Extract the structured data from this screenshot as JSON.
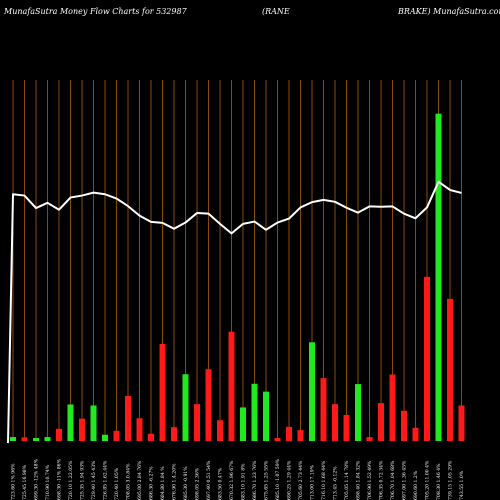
{
  "chart_data": {
    "type": "bar",
    "title": "MunafaSutra  Money Flow  Charts for 532987",
    "title_parts": [
      "MunafaSutra  Money Flow  Charts for 532987",
      "(RANE",
      "BRAKE) MunafaSutra.com"
    ],
    "background": "#000000",
    "up_color": "#22e81f",
    "down_color": "#ff1a1a",
    "price_line_color": "#ffffff",
    "vertical_line_color": "#b05a10",
    "grid": true,
    "legend": "none",
    "volume_ylim": [
      0,
      100
    ],
    "price_ylim": [
      0,
      100
    ],
    "bars": [
      {
        "label": "723.60 1% 96%",
        "direction": "up",
        "volume": 1.2,
        "price": 75
      },
      {
        "label": "725.45 16.98%",
        "direction": "down",
        "volume": 1.1,
        "price": 74.6
      },
      {
        "label": "699.30 -12% 48%",
        "direction": "up",
        "volume": 0.9,
        "price": 70.8
      },
      {
        "label": "710.90 10.74%",
        "direction": "up",
        "volume": 1.2,
        "price": 72.4
      },
      {
        "label": "698.30 -11% 86%",
        "direction": "down",
        "volume": 3.7,
        "price": 70.3
      },
      {
        "label": "720.10 1.22.05%",
        "direction": "up",
        "volume": 11.1,
        "price": 74.0
      },
      {
        "label": "725.35 1.94 93%",
        "direction": "down",
        "volume": 6.8,
        "price": 74.6
      },
      {
        "label": "729.40 1.45 43%",
        "direction": "up",
        "volume": 10.8,
        "price": 75.5
      },
      {
        "label": "726.85 1.62.44%",
        "direction": "up",
        "volume": 1.9,
        "price": 75.0
      },
      {
        "label": "720.40 1.05%",
        "direction": "down",
        "volume": 3.1,
        "price": 73.7
      },
      {
        "label": "708.05 3.0.84%",
        "direction": "down",
        "volume": 13.7,
        "price": 71.4
      },
      {
        "label": "695.00 2.84 76%",
        "direction": "down",
        "volume": 6.9,
        "price": 68.5
      },
      {
        "label": "686.30 -6.27%",
        "direction": "down",
        "volume": 2.2,
        "price": 66.6
      },
      {
        "label": "684.80 1.84 %",
        "direction": "down",
        "volume": 29.5,
        "price": 66.3
      },
      {
        "label": "676.90 1.4.20%",
        "direction": "down",
        "volume": 4.2,
        "price": 64.5
      },
      {
        "label": "685.30 -0.91%",
        "direction": "up",
        "volume": 20.3,
        "price": 66.4
      },
      {
        "label": "698.05 2.36%",
        "direction": "down",
        "volume": 11.2,
        "price": 69.3
      },
      {
        "label": "697.40 0.51 54%",
        "direction": "down",
        "volume": 21.8,
        "price": 69.1
      },
      {
        "label": "683.50 0.47%",
        "direction": "down",
        "volume": 6.3,
        "price": 66.0
      },
      {
        "label": "670.32 1.96 67%",
        "direction": "down",
        "volume": 33.2,
        "price": 63.1
      },
      {
        "label": "683.10 1.91 8%",
        "direction": "up",
        "volume": 10.2,
        "price": 66.0
      },
      {
        "label": "686.70 1.23 76%",
        "direction": "up",
        "volume": 17.4,
        "price": 66.7
      },
      {
        "label": "675.65 1.25 55%",
        "direction": "up",
        "volume": 15.0,
        "price": 64.2
      },
      {
        "label": "685.10 -1.07 59%",
        "direction": "down",
        "volume": 0.9,
        "price": 66.4
      },
      {
        "label": "690.25 1.29 44%",
        "direction": "down",
        "volume": 4.3,
        "price": 67.6
      },
      {
        "label": "705.60 2.73 44%",
        "direction": "down",
        "volume": 3.3,
        "price": 71.0
      },
      {
        "label": "713.00 17.19%",
        "direction": "up",
        "volume": 30.0,
        "price": 72.6
      },
      {
        "label": "716.10 1.68 44%",
        "direction": "down",
        "volume": 19.1,
        "price": 73.3
      },
      {
        "label": "713.45 -0.12%",
        "direction": "down",
        "volume": 11.2,
        "price": 72.7
      },
      {
        "label": "705.05 1.14 78%",
        "direction": "down",
        "volume": 7.9,
        "price": 70.9
      },
      {
        "label": "698.40 1.84 32%",
        "direction": "up",
        "volume": 17.3,
        "price": 69.4
      },
      {
        "label": "706.90 1.52 49%",
        "direction": "down",
        "volume": 1.2,
        "price": 71.3
      },
      {
        "label": "706.35 0.72 34%",
        "direction": "down",
        "volume": 11.5,
        "price": 71.2
      },
      {
        "label": "706.70 1.04 68%",
        "direction": "down",
        "volume": 20.2,
        "price": 71.3
      },
      {
        "label": "697.00 1.36 45%",
        "direction": "down",
        "volume": 9.2,
        "price": 69.1
      },
      {
        "label": "690.60 1.2%",
        "direction": "down",
        "volume": 4.0,
        "price": 67.7
      },
      {
        "label": "705.20 11.00 4%",
        "direction": "down",
        "volume": 49.9,
        "price": 71.0
      },
      {
        "label": "708.30 1.46 4%",
        "direction": "up",
        "volume": 99.5,
        "price": 78.8
      },
      {
        "label": "739.15 1.05 29%",
        "direction": "down",
        "volume": 43.2,
        "price": 76.3
      },
      {
        "label": "743.55 1.0%",
        "direction": "down",
        "volume": 10.8,
        "price": 75.4
      }
    ]
  }
}
